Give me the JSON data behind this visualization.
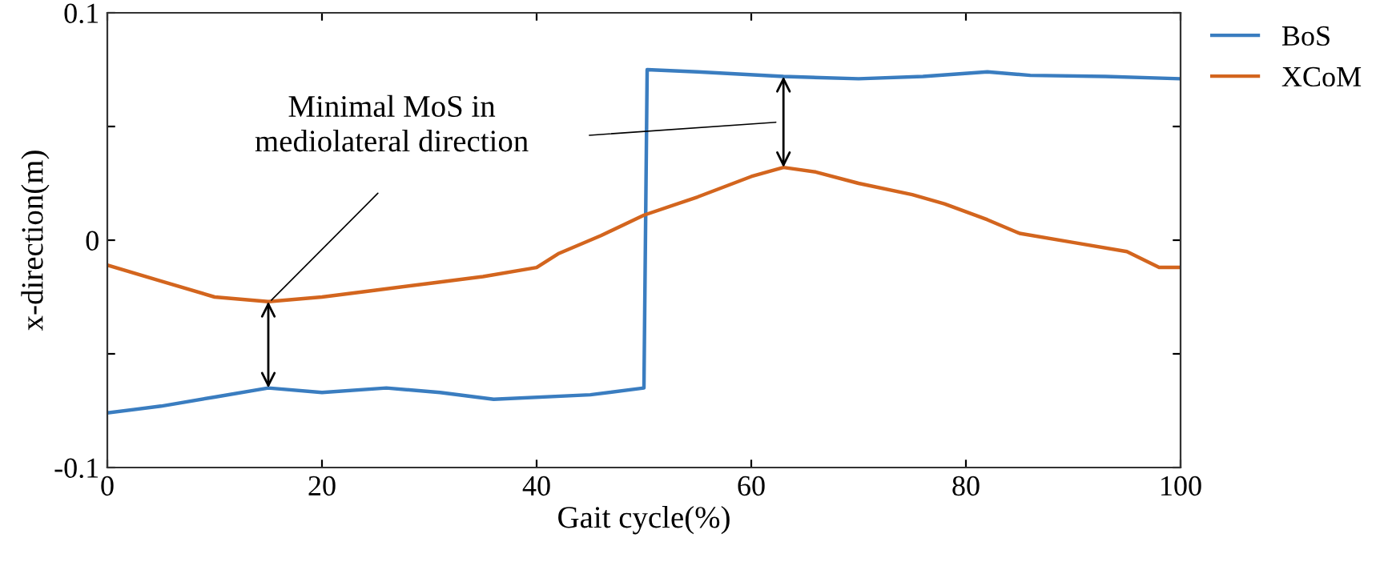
{
  "chart_data": {
    "type": "line",
    "xlabel": "Gait cycle(%)",
    "ylabel": "x-direction(m)",
    "xlim": [
      0,
      100
    ],
    "ylim": [
      -0.1,
      0.1
    ],
    "xticks": [
      0,
      20,
      40,
      60,
      80,
      100
    ],
    "yticks": [
      -0.1,
      {
        "value": -0.05,
        "label": null
      },
      0,
      {
        "value": 0.05,
        "label": null
      },
      0.1
    ],
    "grid": false,
    "legend": "top right",
    "marker": "none",
    "line_style": "solid",
    "annotations": [
      "Minimal MoS in\nmediolateral direction"
    ],
    "series": [
      {
        "name": "BoS",
        "color": "#3a7dc0",
        "x": [
          0,
          5,
          10,
          15,
          20,
          26,
          31,
          36,
          45,
          50,
          50.3,
          55,
          63,
          70,
          76,
          82,
          86,
          93,
          100
        ],
        "values": [
          -0.076,
          -0.073,
          -0.069,
          -0.065,
          -0.067,
          -0.065,
          -0.067,
          -0.07,
          -0.068,
          -0.065,
          0.075,
          0.074,
          0.072,
          0.071,
          0.072,
          0.074,
          0.0725,
          0.072,
          0.071
        ]
      },
      {
        "name": "XCoM",
        "color": "#d3651e",
        "x": [
          0,
          5,
          10,
          15,
          20,
          25,
          30,
          35,
          40,
          42,
          46,
          50,
          55,
          60,
          63,
          66,
          70,
          75,
          78,
          82,
          85,
          90,
          95,
          98,
          100
        ],
        "values": [
          -0.011,
          -0.018,
          -0.025,
          -0.027,
          -0.025,
          -0.022,
          -0.019,
          -0.016,
          -0.012,
          -0.006,
          0.002,
          0.011,
          0.019,
          0.028,
          0.032,
          0.03,
          0.025,
          0.02,
          0.016,
          0.009,
          0.003,
          -0.001,
          -0.005,
          -0.012,
          -0.012
        ]
      }
    ]
  }
}
